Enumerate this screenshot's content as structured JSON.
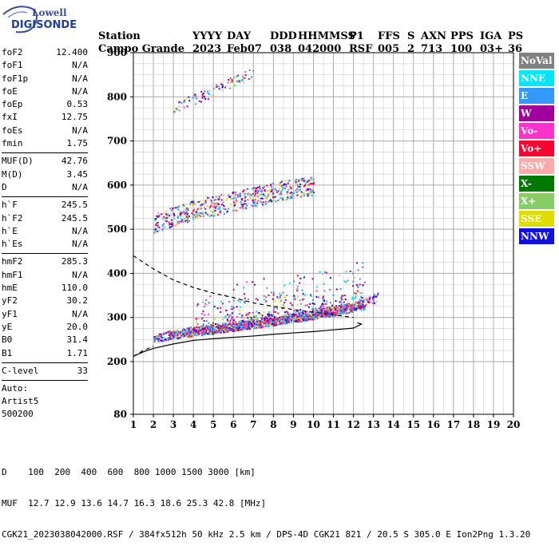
{
  "logo": {
    "brand_top": "Lowell",
    "brand_bottom": "DIGISONDE"
  },
  "header": {
    "labels": [
      "Station",
      "YYYY",
      "DAY",
      "DDD",
      "HHMMSS",
      "P1",
      "FFS",
      "S",
      "AXN",
      "PPS",
      "IGA",
      "PS"
    ],
    "values": [
      "Campo Grande",
      "2023",
      "Feb07",
      "038",
      "042000",
      "RSF",
      "005",
      "2",
      "713",
      "100",
      "03+",
      "36"
    ]
  },
  "params": [
    {
      "name": "foF2",
      "value": "12.400"
    },
    {
      "name": "foF1",
      "value": "N/A"
    },
    {
      "name": "foF1p",
      "value": "N/A"
    },
    {
      "name": "foE",
      "value": "N/A"
    },
    {
      "name": "foEp",
      "value": "0.53"
    },
    {
      "name": "fxI",
      "value": "12.75"
    },
    {
      "name": "foEs",
      "value": "N/A"
    },
    {
      "name": "fmin",
      "value": "1.75"
    },
    {
      "name": "MUF(D)",
      "value": "42.76"
    },
    {
      "name": "M(D)",
      "value": "3.45"
    },
    {
      "name": "D",
      "value": "N/A"
    },
    {
      "name": "h`F",
      "value": "245.5"
    },
    {
      "name": "h`F2",
      "value": "245.5"
    },
    {
      "name": "h`E",
      "value": "N/A"
    },
    {
      "name": "h`Es",
      "value": "N/A"
    },
    {
      "name": "hmF2",
      "value": "285.3"
    },
    {
      "name": "hmF1",
      "value": "N/A"
    },
    {
      "name": "hmE",
      "value": "110.0"
    },
    {
      "name": "yF2",
      "value": "30.2"
    },
    {
      "name": "yF1",
      "value": "N/A"
    },
    {
      "name": "yE",
      "value": "20.0"
    },
    {
      "name": "B0",
      "value": "31.4"
    },
    {
      "name": "B1",
      "value": "1.71"
    },
    {
      "name": "C-level",
      "value": "33"
    }
  ],
  "auto": {
    "line1": "Auto:",
    "line2": "Artist5",
    "line3": "500200"
  },
  "legend": [
    {
      "label": "NoVal",
      "color": "#808080"
    },
    {
      "label": "NNE",
      "color": "#00e5ff"
    },
    {
      "label": "E",
      "color": "#3399ff"
    },
    {
      "label": "W",
      "color": "#a0009b"
    },
    {
      "label": "Vo-",
      "color": "#ff33cc"
    },
    {
      "label": "Vo+",
      "color": "#ff0033"
    },
    {
      "label": "SSW",
      "color": "#ffaaaa"
    },
    {
      "label": "X-",
      "color": "#007700"
    },
    {
      "label": "X+",
      "color": "#88cc66"
    },
    {
      "label": "SSE",
      "color": "#dddd00"
    },
    {
      "label": "NNW",
      "color": "#1111dd"
    }
  ],
  "footer": {
    "line1": "D    100  200  400  600  800 1000 1500 3000 [km]",
    "line2": "MUF  12.7 12.9 13.6 14.7 16.3 18.6 25.3 42.8 [MHz]",
    "line3": "CGK21_2023038042000.RSF / 384fx512h 50 kHz 2.5 km / DPS-4D CGK21 821 / 20.5 S 305.0 E Ion2Png 1.3.20"
  },
  "chart_data": {
    "type": "scatter",
    "x_ticks": [
      "1",
      "2",
      "3",
      "4",
      "5",
      "6",
      "7",
      "8",
      "9",
      "10",
      "11",
      "12",
      "13",
      "14",
      "15",
      "16",
      "17",
      "18",
      "19",
      "20"
    ],
    "y_ticks": [
      "80",
      "200",
      "300",
      "400",
      "500",
      "600",
      "700",
      "800",
      "900"
    ],
    "xlim": [
      1,
      20
    ],
    "y_axis": "piecewise: 80-200 compressed, 200-900 linear",
    "grid": true,
    "series": [
      {
        "name": "o-trace",
        "x": [
          2.0,
          3.0,
          4.0,
          5.0,
          6.0,
          7.0,
          8.0,
          9.0,
          10.0,
          11.0,
          12.0,
          12.4
        ],
        "y": [
          250,
          258,
          265,
          270,
          276,
          282,
          288,
          295,
          302,
          310,
          320,
          330
        ]
      },
      {
        "name": "x-trace",
        "x": [
          2.5,
          3.5,
          4.5,
          5.5,
          6.5,
          7.5,
          8.5,
          9.5,
          10.5,
          11.5,
          12.5,
          13.2
        ],
        "y": [
          255,
          262,
          268,
          274,
          280,
          287,
          293,
          300,
          308,
          316,
          326,
          345
        ]
      },
      {
        "name": "F2 multiple",
        "x": [
          2.0,
          3.0,
          4.0,
          5.0,
          6.0,
          7.0,
          8.0,
          9.0,
          10.0
        ],
        "y": [
          505,
          520,
          535,
          545,
          555,
          565,
          575,
          585,
          590
        ]
      },
      {
        "name": "third multiple",
        "x": [
          3.0,
          3.5,
          4.0,
          4.5,
          5.0,
          5.5,
          6.0,
          6.5,
          7.0
        ],
        "y": [
          770,
          780,
          790,
          800,
          810,
          820,
          830,
          840,
          850
        ]
      },
      {
        "name": "profile-solid",
        "x": [
          1.0,
          1.5,
          2.0,
          3.0,
          4.0,
          5.0,
          6.0,
          7.0,
          8.0,
          9.0,
          10.0,
          11.0,
          12.0,
          12.4,
          12.2
        ],
        "y": [
          212,
          222,
          230,
          240,
          248,
          252,
          255,
          258,
          262,
          265,
          268,
          272,
          276,
          285,
          288
        ]
      },
      {
        "name": "profile-dashed",
        "x": [
          1.0,
          2.0,
          3.0,
          4.0,
          5.0,
          6.0,
          7.0,
          8.0,
          9.0,
          10.0,
          11.0,
          12.0
        ],
        "y": [
          440,
          410,
          385,
          368,
          355,
          345,
          333,
          325,
          318,
          312,
          306,
          300
        ]
      },
      {
        "name": "profile-dashed-low",
        "x": [
          1.0,
          1.5,
          2.0
        ],
        "y": [
          212,
          225,
          235
        ]
      }
    ]
  }
}
